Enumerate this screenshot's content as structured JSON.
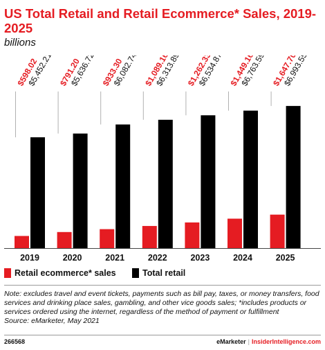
{
  "header": {
    "title": "US Total Retail and Retail Ecommerce* Sales, 2019-2025",
    "subtitle": "billions"
  },
  "colors": {
    "ecommerce": "#e51c22",
    "total": "#000000",
    "label_ecommerce": "#e51c22",
    "label_total": "#111111",
    "leader": "#b0b0b0"
  },
  "chart_data": {
    "type": "bar",
    "categories": [
      "2019",
      "2020",
      "2021",
      "2022",
      "2023",
      "2024",
      "2025"
    ],
    "series": [
      {
        "name": "Retail ecommerce* sales",
        "values": [
          598.02,
          791.2,
          933.3,
          1089.16,
          1262.33,
          1449.16,
          1647.7
        ],
        "labels": [
          "$598.02",
          "$791.20",
          "$933.30",
          "$1,089.16",
          "$1,262.33",
          "$1,449.16",
          "$1,647.70"
        ]
      },
      {
        "name": "Total retail",
        "values": [
          5452.21,
          5636.72,
          6082.74,
          6313.89,
          6534.87,
          6763.59,
          6993.55
        ],
        "labels": [
          "$5,452.21",
          "$5,636.72",
          "$6,082.74",
          "$6,313.89",
          "$6,534.87",
          "$6,763.59",
          "$6,993.55"
        ]
      }
    ],
    "title": "US Total Retail and Retail Ecommerce* Sales, 2019-2025",
    "subtitle": "billions",
    "grid": false,
    "legend_position": "bottom-left"
  },
  "legend": {
    "ecommerce_label": "Retail ecommerce* sales",
    "total_label": "Total retail"
  },
  "note": "Note: excludes travel and event tickets, payments such as bill pay, taxes, or money transfers, food services and drinking place sales, gambling, and other vice goods sales; *includes products or services ordered using the internet, regardless of the method of payment or fulfillment",
  "source": "Source: eMarketer, May 2021",
  "footer": {
    "id": "266568",
    "brand": "eMarketer",
    "separator": "|",
    "site": "InsiderIntelligence.com"
  }
}
